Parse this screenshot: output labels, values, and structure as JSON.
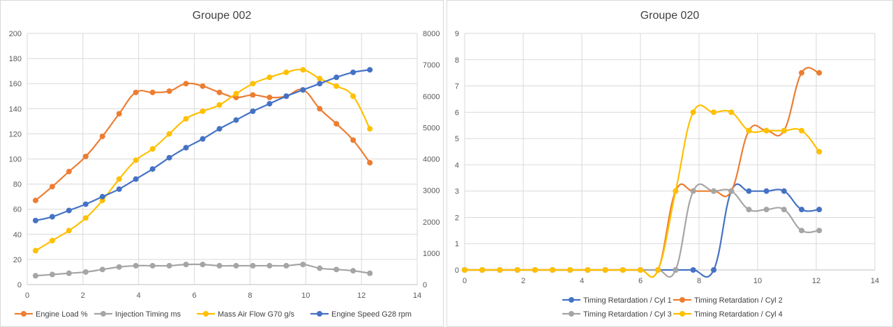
{
  "chart_data": [
    {
      "type": "line",
      "title": "Groupe 002",
      "xlim": [
        0,
        14
      ],
      "xticks": [
        0,
        2,
        4,
        6,
        8,
        10,
        12,
        14
      ],
      "ylim": [
        0,
        200
      ],
      "yticks": [
        0,
        20,
        40,
        60,
        80,
        100,
        120,
        140,
        160,
        180,
        200
      ],
      "y2lim": [
        0,
        8000
      ],
      "y2ticks": [
        0,
        1000,
        2000,
        3000,
        4000,
        5000,
        6000,
        7000,
        8000
      ],
      "grid": true,
      "legend_position": "bottom",
      "x": [
        0.3,
        0.9,
        1.5,
        2.1,
        2.7,
        3.3,
        3.9,
        4.5,
        5.1,
        5.7,
        6.3,
        6.9,
        7.5,
        8.1,
        8.7,
        9.3,
        9.9,
        10.5,
        11.1,
        11.7,
        12.3
      ],
      "series": [
        {
          "name": "Engine Load %",
          "color": "#ed7d31",
          "axis": "left",
          "values": [
            67,
            78,
            90,
            102,
            118,
            136,
            153,
            153,
            154,
            160,
            158,
            153,
            149,
            151,
            149,
            150,
            155,
            140,
            128,
            115,
            97
          ]
        },
        {
          "name": "Injection Timing ms",
          "color": "#a5a5a5",
          "axis": "left",
          "values": [
            7,
            8,
            9,
            10,
            12,
            14,
            15,
            15,
            15,
            16,
            16,
            15,
            15,
            15,
            15,
            15,
            16,
            13,
            12,
            11,
            9
          ]
        },
        {
          "name": "Mass Air Flow G70 g/s",
          "color": "#ffc000",
          "axis": "left",
          "values": [
            27,
            35,
            43,
            53,
            67,
            84,
            99,
            108,
            120,
            132,
            138,
            143,
            152,
            160,
            165,
            169,
            171,
            164,
            158,
            150,
            124
          ]
        },
        {
          "name": "Engine Speed G28 rpm",
          "color": "#4472c4",
          "axis": "right",
          "values": [
            2040,
            2160,
            2360,
            2560,
            2800,
            3040,
            3360,
            3680,
            4040,
            4360,
            4640,
            4960,
            5240,
            5520,
            5760,
            6000,
            6200,
            6400,
            6600,
            6760,
            6840
          ]
        }
      ]
    },
    {
      "type": "line",
      "title": "Groupe 020",
      "xlim": [
        0,
        14
      ],
      "xticks": [
        0,
        2,
        4,
        6,
        8,
        10,
        12,
        14
      ],
      "ylim": [
        0,
        9
      ],
      "yticks": [
        0,
        1,
        2,
        3,
        4,
        5,
        6,
        7,
        8,
        9
      ],
      "grid": true,
      "legend_position": "bottom",
      "x": [
        0,
        0.6,
        1.2,
        1.8,
        2.4,
        3.0,
        3.6,
        4.2,
        4.8,
        5.4,
        6.0,
        6.6,
        7.2,
        7.8,
        8.5,
        9.1,
        9.7,
        10.3,
        10.9,
        11.5,
        12.1
      ],
      "series": [
        {
          "name": "Timing Retardation / Cyl 1",
          "color": "#4472c4",
          "values": [
            0,
            0,
            0,
            0,
            0,
            0,
            0,
            0,
            0,
            0,
            0,
            0,
            0,
            0,
            0,
            3.0,
            3.0,
            3.0,
            3.0,
            2.3,
            2.3
          ]
        },
        {
          "name": "Timing Retardation / Cyl 2",
          "color": "#ed7d31",
          "values": [
            0,
            0,
            0,
            0,
            0,
            0,
            0,
            0,
            0,
            0,
            0,
            0,
            3.0,
            3.0,
            3.0,
            3.0,
            5.3,
            5.3,
            5.3,
            7.5,
            7.5
          ]
        },
        {
          "name": "Timing Retardation / Cyl 3",
          "color": "#a5a5a5",
          "values": [
            0,
            0,
            0,
            0,
            0,
            0,
            0,
            0,
            0,
            0,
            0,
            0,
            0,
            3.0,
            3.0,
            3.0,
            2.3,
            2.3,
            2.3,
            1.5,
            1.5
          ]
        },
        {
          "name": "Timing Retardation / Cyl 4",
          "color": "#ffc000",
          "values": [
            0,
            0,
            0,
            0,
            0,
            0,
            0,
            0,
            0,
            0,
            0,
            0,
            3.0,
            6.0,
            6.0,
            6.0,
            5.3,
            5.3,
            5.3,
            5.3,
            4.5
          ]
        }
      ]
    }
  ]
}
